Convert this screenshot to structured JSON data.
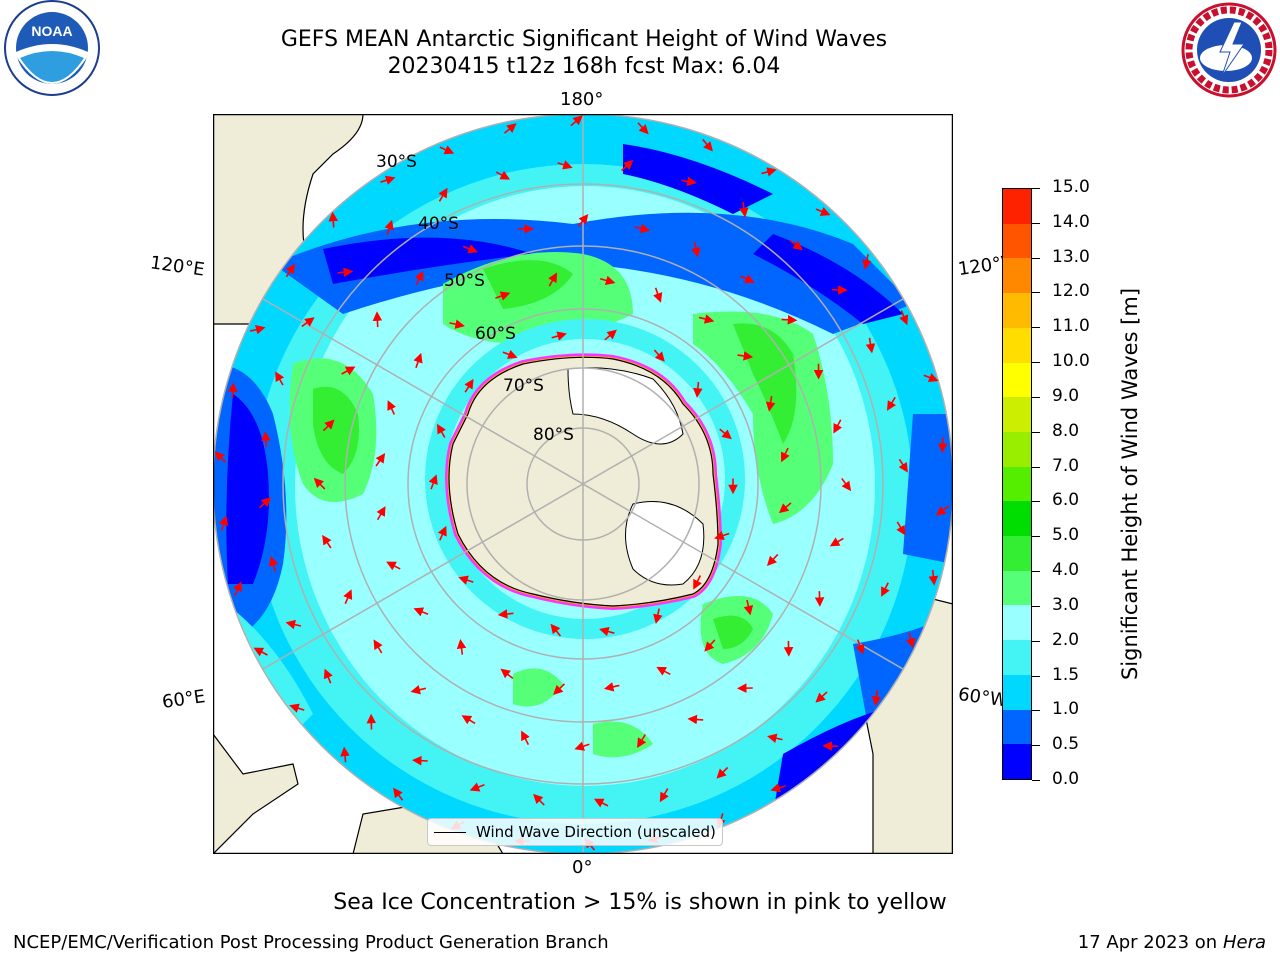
{
  "title_line1": "GEFS MEAN Antarctic Significant Height of Wind Waves",
  "title_line2": "20230415 t12z 168h fcst   Max: 6.04",
  "colorbar": {
    "label": "Significant Height of Wind Waves [m]",
    "ticks": [
      "0.0",
      "0.5",
      "1.0",
      "1.5",
      "2.0",
      "3.0",
      "4.0",
      "5.0",
      "6.0",
      "7.0",
      "8.0",
      "9.0",
      "10.0",
      "11.0",
      "12.0",
      "13.0",
      "14.0",
      "15.0"
    ],
    "colors": [
      "#0000ff",
      "#0066ff",
      "#00d8ff",
      "#44f4f4",
      "#99ffff",
      "#55ff77",
      "#33ee33",
      "#00dd00",
      "#55ee00",
      "#99ee00",
      "#ccee00",
      "#ffff00",
      "#ffdd00",
      "#ffbb00",
      "#ff8800",
      "#ff5500",
      "#ff2200"
    ]
  },
  "map": {
    "lon_labels": {
      "top": "180°",
      "bottom": "0°",
      "upper_left": "120°E",
      "lower_left": "60°E",
      "upper_right": "120°W",
      "lower_right": "60°W"
    },
    "lat_labels": [
      "30°S",
      "40°S",
      "50°S",
      "60°S",
      "70°S",
      "80°S"
    ],
    "ocean_colors": {
      "low": "#0000ff",
      "lowmid": "#0066ff",
      "mid": "#00d8ff",
      "midhigh": "#44f4f4",
      "high": "#99ffff",
      "peak": "#55ff77",
      "peak2": "#33ee33"
    },
    "land_color": "#efecd8",
    "ice_edge_colors": [
      "#ff33ff",
      "#ffaa00",
      "#ffff66"
    ],
    "arrow_color": "#ff0000",
    "legend_label": "Wind Wave Direction (unscaled)"
  },
  "footer": {
    "note": "Sea Ice Concentration > 15% is shown in pink to yellow",
    "left": "NCEP/EMC/Verification Post Processing Product Generation Branch",
    "right_prefix": "17 Apr 2023 on ",
    "right_host": "Hera"
  },
  "logos": {
    "left_text": "NOAA"
  }
}
